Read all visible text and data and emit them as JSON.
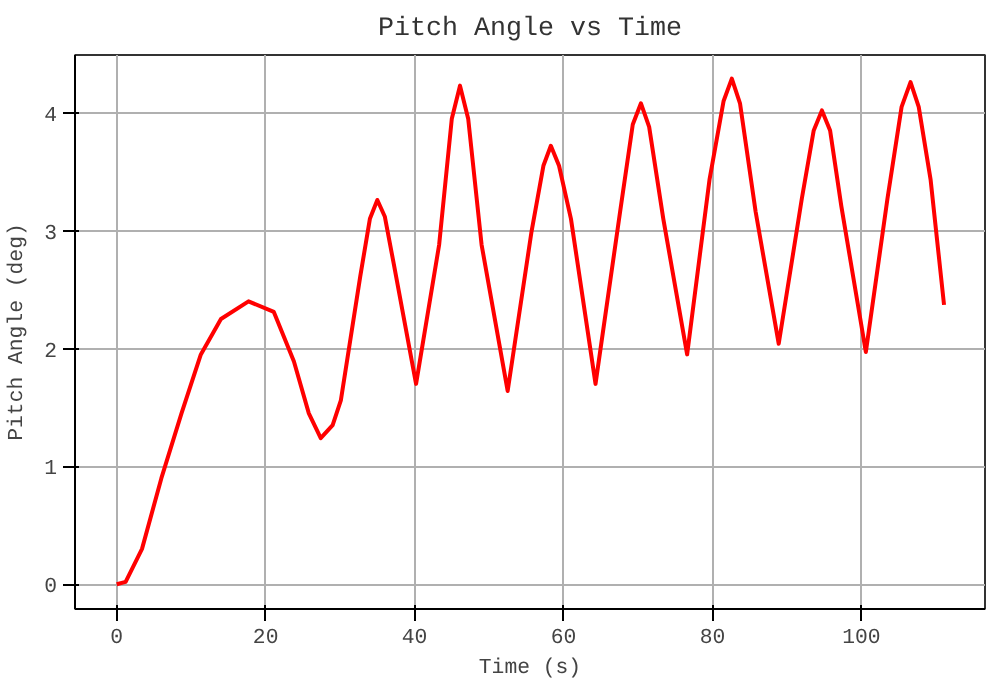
{
  "chart_data": {
    "type": "line",
    "title": "Pitch Angle vs Time",
    "xlabel": "Time (s)",
    "ylabel": "Pitch Angle (deg)",
    "x": [
      0,
      1.2,
      3.4,
      6.0,
      8.7,
      11.3,
      14.0,
      17.7,
      21.1,
      23.8,
      25.8,
      27.4,
      29.0,
      30.1,
      32.7,
      34.0,
      35.0,
      36.0,
      37.2,
      40.2,
      43.3,
      45.0,
      46.1,
      47.2,
      49.0,
      52.5,
      55.7,
      57.3,
      58.3,
      59.4,
      61.0,
      64.3,
      67.6,
      69.3,
      70.4,
      71.5,
      73.4,
      76.6,
      79.6,
      81.5,
      82.6,
      83.7,
      85.8,
      88.9,
      92.0,
      93.6,
      94.7,
      95.8,
      97.3,
      100.6,
      103.5,
      105.4,
      106.6,
      107.7,
      109.3,
      111.1
    ],
    "series": [
      {
        "color": "#ff0000",
        "values": [
          0,
          0.02,
          0.3,
          0.9,
          1.45,
          1.95,
          2.25,
          2.4,
          2.31,
          1.89,
          1.45,
          1.24,
          1.35,
          1.56,
          2.61,
          3.1,
          3.26,
          3.12,
          2.72,
          1.7,
          2.88,
          3.95,
          4.23,
          3.95,
          2.88,
          1.64,
          2.99,
          3.55,
          3.72,
          3.55,
          3.1,
          1.7,
          3.16,
          3.9,
          4.08,
          3.88,
          3.1,
          1.95,
          3.43,
          4.1,
          4.29,
          4.08,
          3.16,
          2.04,
          3.27,
          3.85,
          4.02,
          3.85,
          3.21,
          1.97,
          3.27,
          4.05,
          4.26,
          4.05,
          3.43,
          2.37
        ]
      }
    ],
    "xlim": [
      -5.6,
      116.6
    ],
    "ylim": [
      -0.21,
      4.49
    ],
    "xticks": [
      0,
      20,
      40,
      60,
      80,
      100
    ],
    "yticks": [
      0,
      1,
      2,
      3,
      4
    ],
    "grid": true,
    "line_style": "solid",
    "marker": "none"
  }
}
